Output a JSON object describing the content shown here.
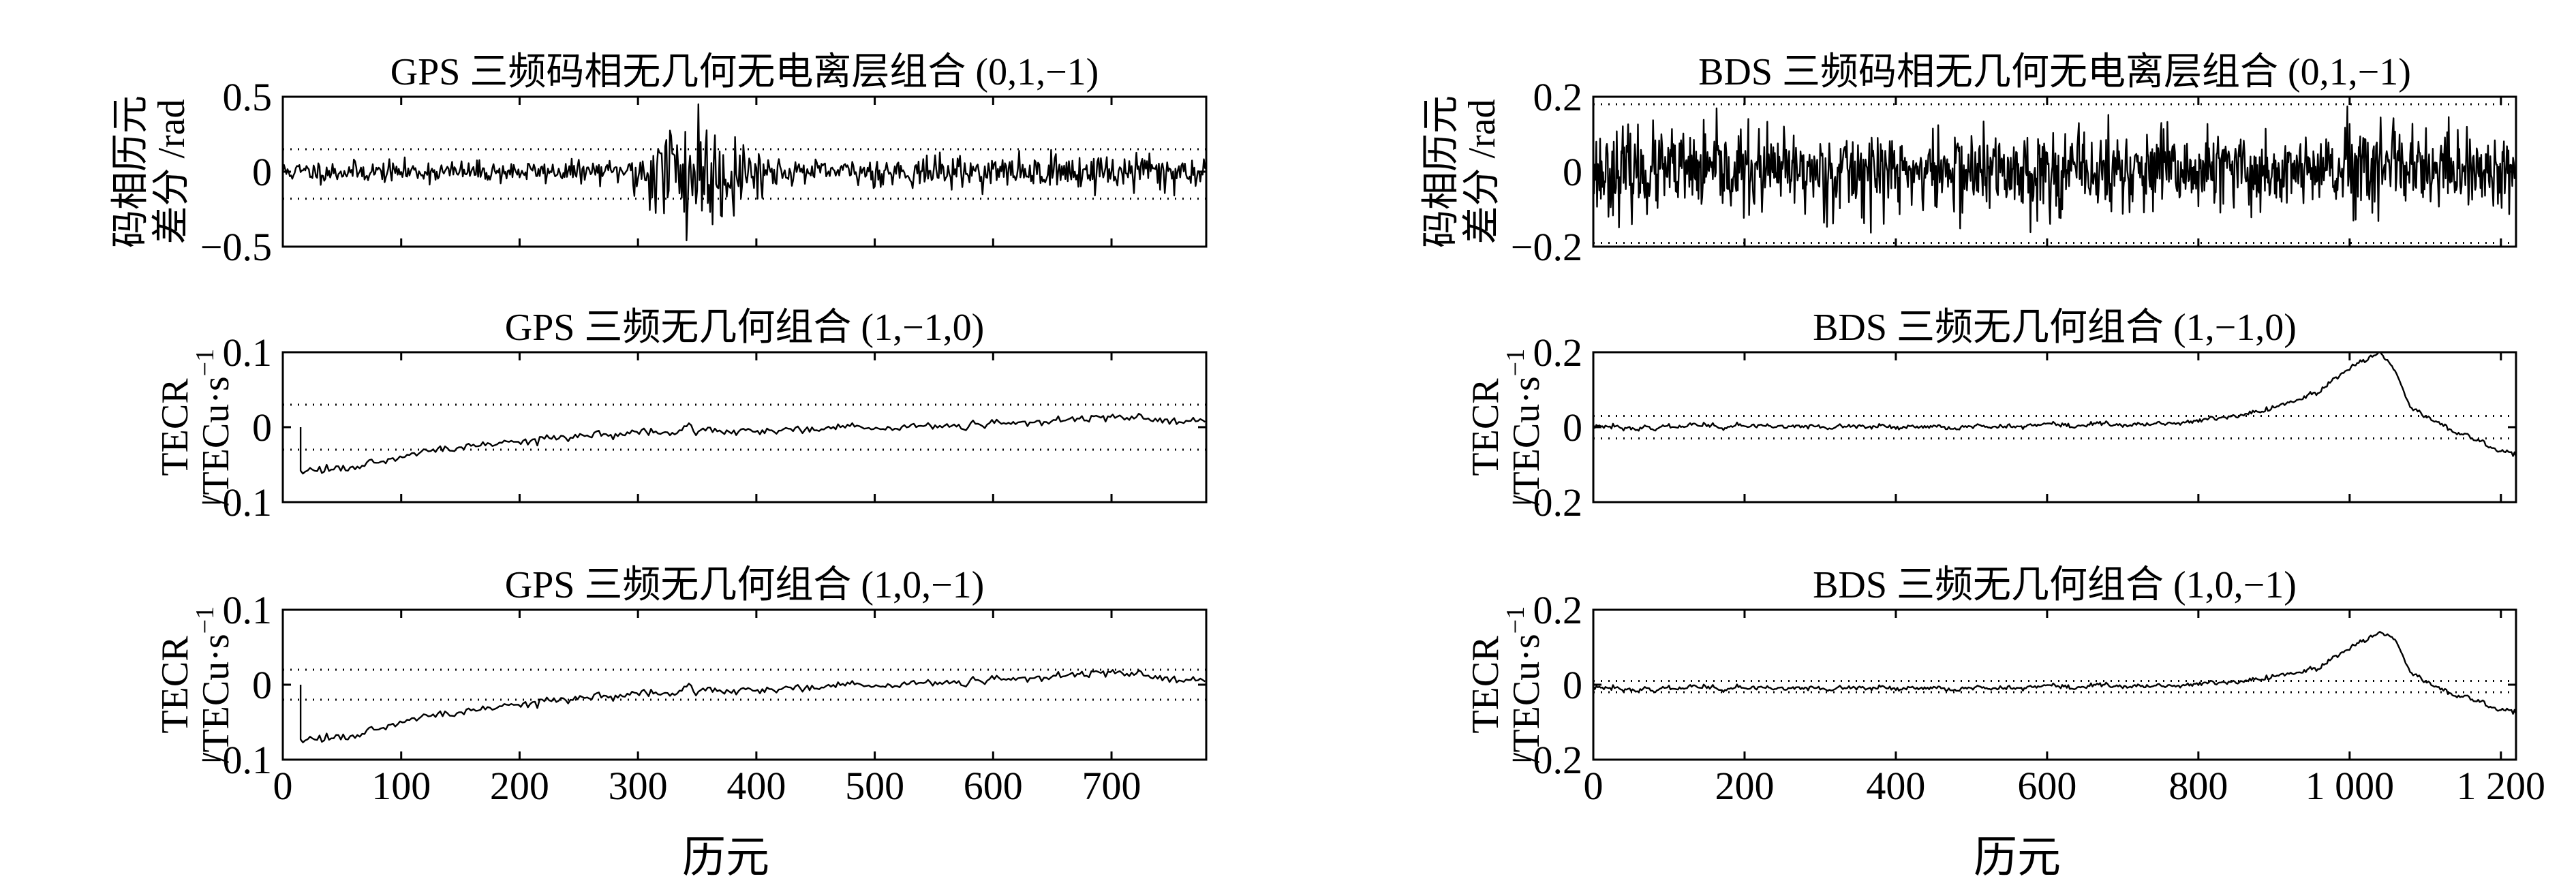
{
  "figure": {
    "x_axis_label_left": "历元",
    "x_axis_label_right": "历元"
  },
  "chart_data": [
    {
      "id": "gps-code-phase",
      "type": "line",
      "title": "GPS 三频码相无几何无电离层组合 (0,1,−1)",
      "ylabel_lines": [
        "码相历元",
        "差分 /rad"
      ],
      "xlim": [
        0,
        780
      ],
      "ylim": [
        -0.5,
        0.5
      ],
      "yticks": [
        -0.5,
        0,
        0.5
      ],
      "ytick_labels": [
        "−0.5",
        "0",
        "0.5"
      ],
      "xticks": [
        0,
        100,
        200,
        300,
        400,
        500,
        600,
        700
      ],
      "xtick_labels": [],
      "thresholds": [
        0.15,
        -0.18
      ],
      "series": [
        {
          "name": "(0,1,−1)",
          "description": "noise ~±0.08 rad, burst up to ±0.45 rad at epochs 300–420"
        }
      ]
    },
    {
      "id": "bds-code-phase",
      "type": "line",
      "title": "BDS 三频码相无几何无电离层组合 (0,1,−1)",
      "ylabel_lines": [
        "码相历元",
        "差分 /rad"
      ],
      "xlim": [
        0,
        1220
      ],
      "ylim": [
        -0.2,
        0.2
      ],
      "yticks": [
        -0.2,
        0,
        0.2
      ],
      "ytick_labels": [
        "−0.2",
        "0",
        "0.2"
      ],
      "xticks": [
        0,
        200,
        400,
        600,
        800,
        1000,
        1200
      ],
      "xtick_labels": [],
      "thresholds": [
        0.18,
        -0.19
      ],
      "series": [
        {
          "name": "(0,1,−1)",
          "description": "noise ~±0.1 rad throughout"
        }
      ]
    },
    {
      "id": "gps-gf-1-10",
      "type": "line",
      "title": "GPS 三频无几何组合 (1,−1,0)",
      "ylabel_lines": [
        "TECR",
        "/TECu·s",
        "−1"
      ],
      "xlim": [
        0,
        780
      ],
      "ylim": [
        -0.1,
        0.1
      ],
      "yticks": [
        -0.1,
        0,
        0.1
      ],
      "ytick_labels": [
        "−0.1",
        "0",
        "0.1"
      ],
      "xticks": [
        0,
        100,
        200,
        300,
        400,
        500,
        600,
        700
      ],
      "xtick_labels": [],
      "thresholds": [
        0.03,
        -0.03
      ],
      "series": [
        {
          "name": "(1,−1,0)",
          "x": [
            15,
            60,
            100,
            150,
            200,
            300,
            400,
            500,
            600,
            700,
            780
          ],
          "y": [
            -0.055,
            -0.055,
            -0.04,
            -0.025,
            -0.018,
            -0.008,
            -0.003,
            0.0,
            0.003,
            0.012,
            0.008
          ]
        }
      ]
    },
    {
      "id": "bds-gf-1-10",
      "type": "line",
      "title": "BDS 三频无几何组合 (1,−1,0)",
      "ylabel_lines": [
        "TECR",
        "/TECu·s",
        "−1"
      ],
      "xlim": [
        0,
        1220
      ],
      "ylim": [
        -0.2,
        0.2
      ],
      "yticks": [
        -0.2,
        0,
        0.2
      ],
      "ytick_labels": [
        "−0.2",
        "0",
        "0.2"
      ],
      "xticks": [
        0,
        200,
        400,
        600,
        800,
        1000,
        1200
      ],
      "xtick_labels": [],
      "thresholds": [
        0.03,
        -0.03
      ],
      "series": [
        {
          "name": "(1,−1,0)",
          "x": [
            0,
            200,
            400,
            600,
            700,
            800,
            900,
            960,
            1000,
            1040,
            1060,
            1080,
            1120,
            1160,
            1220
          ],
          "y": [
            0.0,
            0.002,
            0.0,
            0.003,
            0.005,
            0.015,
            0.05,
            0.1,
            0.16,
            0.2,
            0.15,
            0.05,
            0.01,
            -0.03,
            -0.08
          ]
        }
      ]
    },
    {
      "id": "gps-gf-10-1",
      "type": "line",
      "title": "GPS 三频无几何组合 (1,0,−1)",
      "ylabel_lines": [
        "TECR",
        "/TECu·s",
        "−1"
      ],
      "xlim": [
        0,
        780
      ],
      "ylim": [
        -0.1,
        0.1
      ],
      "yticks": [
        -0.1,
        0,
        0.1
      ],
      "ytick_labels": [
        "−0.1",
        "0",
        "0.1"
      ],
      "xticks": [
        0,
        100,
        200,
        300,
        400,
        500,
        600,
        700
      ],
      "xtick_labels": [
        "0",
        "100",
        "200",
        "300",
        "400",
        "500",
        "600",
        "700"
      ],
      "thresholds": [
        0.02,
        -0.02
      ],
      "series": [
        {
          "name": "(1,0,−1)",
          "x": [
            15,
            60,
            100,
            150,
            200,
            300,
            400,
            500,
            600,
            700,
            780
          ],
          "y": [
            -0.07,
            -0.07,
            -0.05,
            -0.035,
            -0.025,
            -0.013,
            -0.005,
            0.0,
            0.005,
            0.015,
            0.005
          ]
        }
      ]
    },
    {
      "id": "bds-gf-10-1",
      "type": "line",
      "title": "BDS 三频无几何组合 (1,0,−1)",
      "ylabel_lines": [
        "TECR",
        "/TECu·s",
        "−1"
      ],
      "xlim": [
        0,
        1220
      ],
      "ylim": [
        -0.2,
        0.2
      ],
      "yticks": [
        -0.2,
        0,
        0.2
      ],
      "ytick_labels": [
        "−0.2",
        "0",
        "0.2"
      ],
      "xticks": [
        0,
        200,
        400,
        600,
        800,
        1000,
        1200
      ],
      "xtick_labels": [
        "0",
        "200",
        "400",
        "600",
        "800",
        "1 000",
        "1 200"
      ],
      "thresholds": [
        0.01,
        -0.02
      ],
      "series": [
        {
          "name": "(1,0,−1)",
          "x": [
            0,
            200,
            400,
            600,
            700,
            800,
            900,
            960,
            1000,
            1040,
            1060,
            1080,
            1120,
            1160,
            1220
          ],
          "y": [
            -0.01,
            -0.01,
            -0.01,
            -0.008,
            -0.005,
            0.0,
            0.02,
            0.05,
            0.1,
            0.14,
            0.12,
            0.03,
            -0.01,
            -0.04,
            -0.08
          ]
        }
      ]
    }
  ]
}
